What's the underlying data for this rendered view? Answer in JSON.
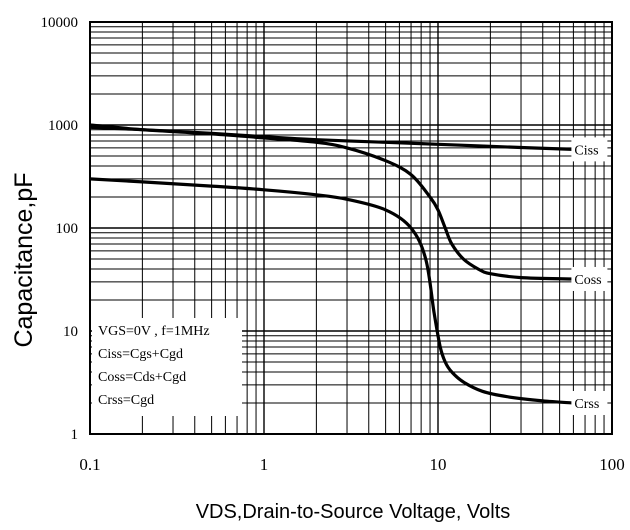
{
  "chart_data": {
    "type": "line",
    "title": "",
    "xlabel": "VDS,Drain-to-Source Voltage, Volts",
    "ylabel": "Capacitance,pF",
    "x_scale": "log",
    "y_scale": "log",
    "xlim": [
      0.1,
      100
    ],
    "ylim": [
      1,
      10000
    ],
    "grid": true,
    "x_ticks": [
      "0.1",
      "1",
      "10",
      "100"
    ],
    "y_ticks": [
      "10000",
      "1000",
      "100",
      "10",
      "1"
    ],
    "series": [
      {
        "name": "Ciss",
        "x": [
          0.1,
          0.2,
          0.5,
          1,
          2,
          5,
          10,
          20,
          60
        ],
        "y": [
          950,
          900,
          830,
          770,
          720,
          680,
          650,
          620,
          580
        ]
      },
      {
        "name": "Coss",
        "x": [
          0.1,
          0.2,
          0.5,
          1,
          2,
          3,
          5,
          7,
          9,
          10,
          11,
          12,
          14,
          17,
          20,
          30,
          60
        ],
        "y": [
          1000,
          900,
          820,
          750,
          680,
          600,
          450,
          330,
          200,
          150,
          100,
          70,
          50,
          40,
          36,
          33,
          32
        ]
      },
      {
        "name": "Crss",
        "x": [
          0.1,
          0.2,
          0.5,
          1,
          2,
          3,
          5,
          7,
          8.5,
          9.5,
          10.3,
          11,
          12,
          14,
          18,
          25,
          40,
          60
        ],
        "y": [
          300,
          280,
          255,
          235,
          210,
          190,
          150,
          100,
          50,
          15,
          7,
          5,
          4,
          3.2,
          2.6,
          2.3,
          2.1,
          2.0
        ]
      }
    ],
    "legend_box": {
      "position": "bottom-left",
      "lines": [
        "VGS=0V , f=1MHz",
        "Ciss=Cgs+Cgd",
        "Coss=Cds+Cgd",
        "Crss=Cgd"
      ]
    }
  }
}
